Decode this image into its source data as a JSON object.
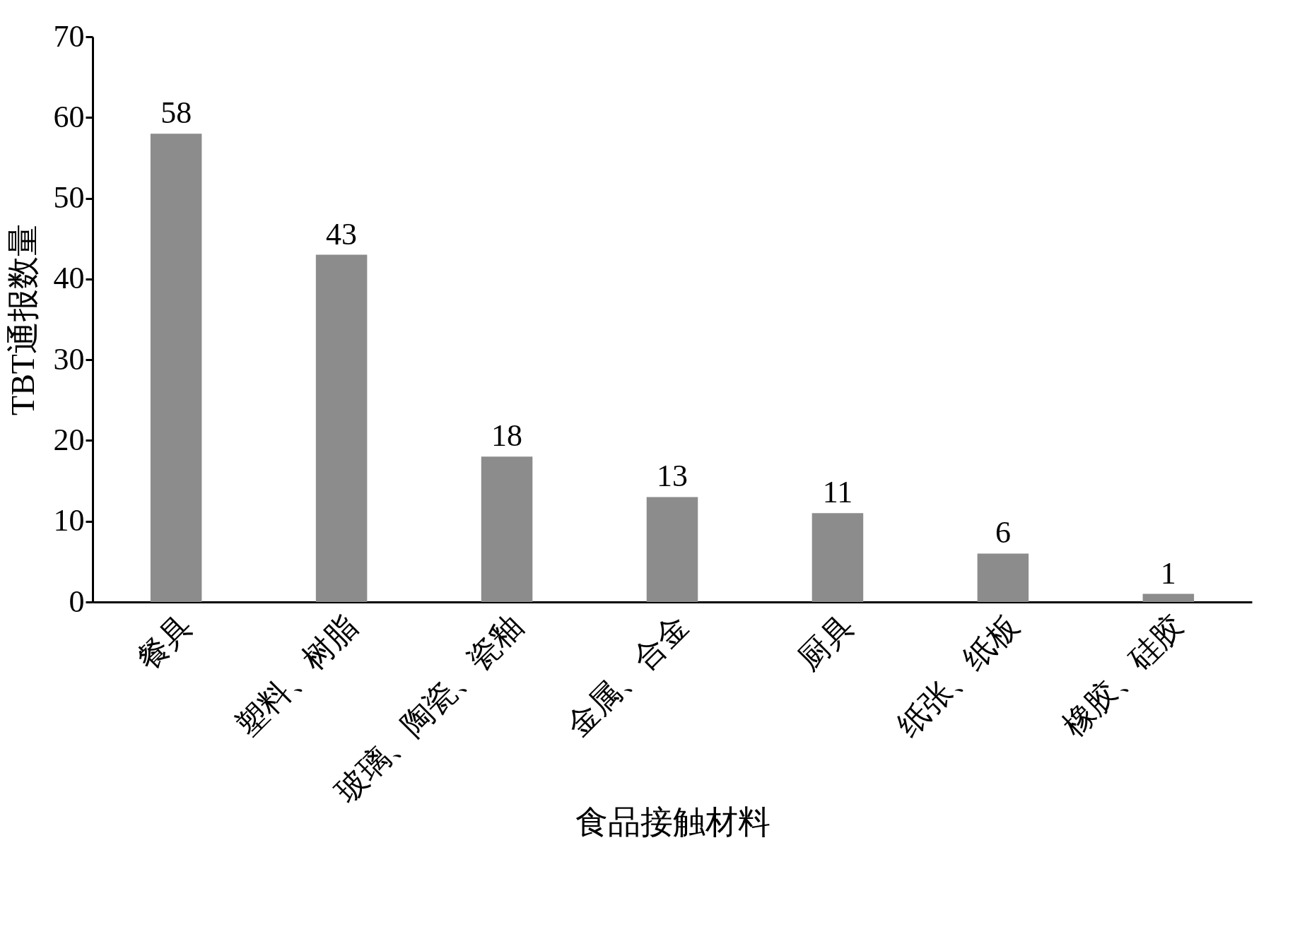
{
  "chart_data": {
    "type": "bar",
    "xlabel": "食品接触材料",
    "ylabel": "TBT通报数量",
    "categories": [
      "餐具",
      "塑料、树脂",
      "玻璃、陶瓷、瓷釉",
      "金属、合金",
      "厨具",
      "纸张、纸板",
      "橡胶、硅胶"
    ],
    "values": [
      58,
      43,
      18,
      13,
      11,
      6,
      1
    ],
    "color": "#8c8c8c",
    "ylim": [
      0,
      70
    ],
    "yticks": [
      0,
      10,
      20,
      30,
      40,
      50,
      60,
      70
    ],
    "data_labels": true,
    "grid": false
  }
}
